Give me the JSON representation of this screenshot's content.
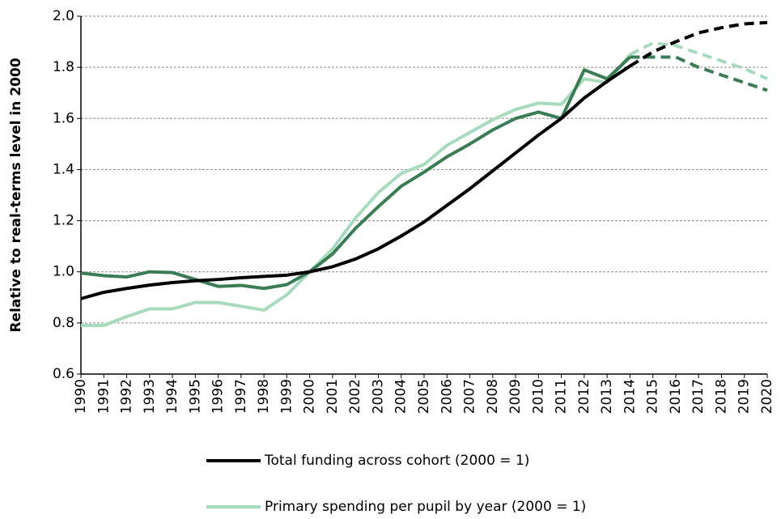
{
  "chart_data": {
    "type": "line",
    "y_label": "Relative to real-terms level in 2000",
    "categories": [
      "1990",
      "1991",
      "1992",
      "1993",
      "1994",
      "1995",
      "1996",
      "1997",
      "1998",
      "1999",
      "2000",
      "2001",
      "2002",
      "2003",
      "2004",
      "2005",
      "2006",
      "2007",
      "2008",
      "2009",
      "2010",
      "2011",
      "2012",
      "2013",
      "2014",
      "2015",
      "2016",
      "2017",
      "2018",
      "2019",
      "2020"
    ],
    "projection_start": "2014",
    "series": [
      {
        "name": "Total funding across cohort (2000 = 1)",
        "color": "#000000",
        "values": [
          0.895,
          0.92,
          0.935,
          0.948,
          0.958,
          0.965,
          0.97,
          0.977,
          0.982,
          0.987,
          1.0,
          1.02,
          1.05,
          1.09,
          1.14,
          1.195,
          1.26,
          1.325,
          1.395,
          1.465,
          1.535,
          1.6,
          1.68,
          1.745,
          1.805,
          1.86,
          1.9,
          1.935,
          1.955,
          1.97,
          1.975
        ]
      },
      {
        "color": "#3a7d55",
        "values": [
          0.995,
          0.985,
          0.98,
          1.0,
          0.997,
          0.97,
          0.943,
          0.947,
          0.935,
          0.95,
          1.0,
          1.07,
          1.17,
          1.255,
          1.335,
          1.39,
          1.45,
          1.5,
          1.555,
          1.6,
          1.625,
          1.6,
          1.79,
          1.755,
          1.84,
          1.84,
          1.84,
          1.8,
          1.77,
          1.74,
          1.71
        ]
      },
      {
        "name": "Primary spending per pupil by year (2000 = 1)",
        "color": "#a8dbbd",
        "values": [
          0.79,
          0.79,
          0.825,
          0.855,
          0.855,
          0.88,
          0.88,
          0.865,
          0.85,
          0.91,
          1.0,
          1.09,
          1.21,
          1.31,
          1.385,
          1.42,
          1.495,
          1.545,
          1.595,
          1.635,
          1.66,
          1.655,
          1.755,
          1.74,
          1.85,
          1.895,
          1.885,
          1.855,
          1.825,
          1.795,
          1.755
        ]
      }
    ],
    "ylim": [
      0.6,
      2.0
    ],
    "yticks": [
      0.6,
      0.8,
      {
        "value": 1,
        "label": "1.0"
      },
      1.2,
      1.4,
      1.6,
      1.8,
      {
        "value": 2,
        "label": "2.0"
      }
    ],
    "grid": true
  }
}
